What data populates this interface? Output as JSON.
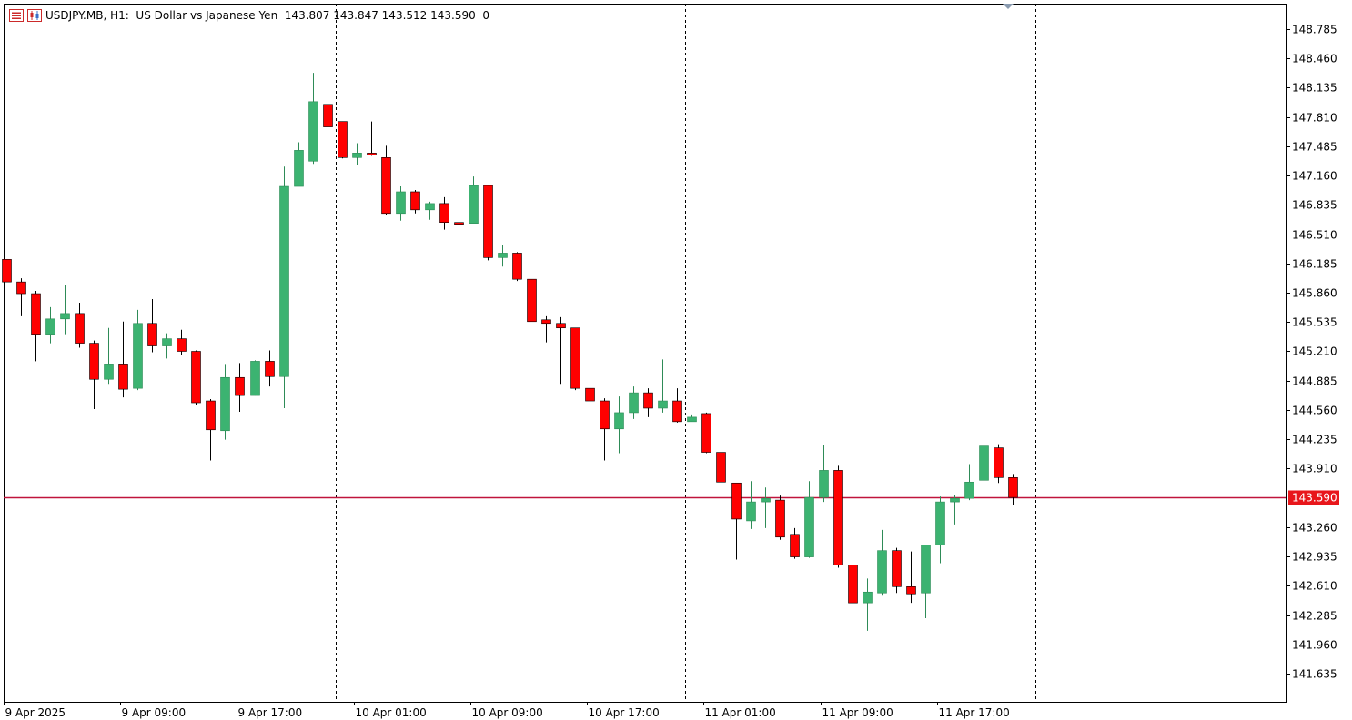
{
  "header": {
    "symbol_info": "USDJPY.MB, H1:  US Dollar vs Japanese Yen  143.807 143.847 143.512 143.590  0",
    "symbol_icon": "symbol-list-icon",
    "chart_icon": "candle-chart-icon"
  },
  "current_price": {
    "label": "143.590",
    "value": 143.59,
    "line_color": "#c0143c",
    "tag_color": "#e8161b"
  },
  "colors": {
    "bull": "#3cb371",
    "bear": "#ff0000",
    "grid_sep": "#000000"
  },
  "chart_data": {
    "type": "candlestick",
    "title": "",
    "y_ticks": [
      "148.785",
      "148.460",
      "148.135",
      "147.810",
      "147.485",
      "147.160",
      "146.835",
      "146.510",
      "146.185",
      "145.860",
      "145.535",
      "145.210",
      "144.885",
      "144.560",
      "144.235",
      "143.910",
      "143.260",
      "142.935",
      "142.610",
      "142.285",
      "141.960",
      "141.635"
    ],
    "ylim": [
      141.45,
      149.03
    ],
    "x_labels": [
      "9 Apr 2025",
      "9 Apr 09:00",
      "9 Apr 17:00",
      "10 Apr 01:00",
      "10 Apr 09:00",
      "10 Apr 17:00",
      "11 Apr 01:00",
      "11 Apr 09:00",
      "11 Apr 17:00"
    ],
    "day_separators": [
      "10 Apr 2025",
      "11 Apr 2025",
      "12 Apr 2025"
    ],
    "candles": [
      {
        "o": 146.23,
        "h": 146.23,
        "l": 145.98,
        "c": 145.98
      },
      {
        "o": 145.98,
        "h": 146.02,
        "l": 145.6,
        "c": 145.85
      },
      {
        "o": 145.85,
        "h": 145.88,
        "l": 145.1,
        "c": 145.4
      },
      {
        "o": 145.4,
        "h": 145.7,
        "l": 145.3,
        "c": 145.57
      },
      {
        "o": 145.57,
        "h": 145.95,
        "l": 145.4,
        "c": 145.63
      },
      {
        "o": 145.63,
        "h": 145.75,
        "l": 145.25,
        "c": 145.3
      },
      {
        "o": 145.3,
        "h": 145.33,
        "l": 144.57,
        "c": 144.9
      },
      {
        "o": 144.9,
        "h": 145.47,
        "l": 144.85,
        "c": 145.07
      },
      {
        "o": 145.07,
        "h": 145.54,
        "l": 144.7,
        "c": 144.79
      },
      {
        "o": 144.8,
        "h": 145.67,
        "l": 144.78,
        "c": 145.52
      },
      {
        "o": 145.52,
        "h": 145.79,
        "l": 145.2,
        "c": 145.27
      },
      {
        "o": 145.27,
        "h": 145.41,
        "l": 145.13,
        "c": 145.35
      },
      {
        "o": 145.35,
        "h": 145.45,
        "l": 145.17,
        "c": 145.21
      },
      {
        "o": 145.21,
        "h": 145.22,
        "l": 144.62,
        "c": 144.64
      },
      {
        "o": 144.66,
        "h": 144.68,
        "l": 144.0,
        "c": 144.34
      },
      {
        "o": 144.33,
        "h": 145.07,
        "l": 144.23,
        "c": 144.92
      },
      {
        "o": 144.92,
        "h": 145.08,
        "l": 144.54,
        "c": 144.72
      },
      {
        "o": 144.72,
        "h": 145.11,
        "l": 144.72,
        "c": 145.1
      },
      {
        "o": 145.1,
        "h": 145.22,
        "l": 144.82,
        "c": 144.93
      },
      {
        "o": 144.93,
        "h": 147.26,
        "l": 144.58,
        "c": 147.04
      },
      {
        "o": 147.04,
        "h": 147.53,
        "l": 147.04,
        "c": 147.44
      },
      {
        "o": 147.32,
        "h": 148.3,
        "l": 147.29,
        "c": 147.98
      },
      {
        "o": 147.95,
        "h": 148.05,
        "l": 147.68,
        "c": 147.7
      },
      {
        "o": 147.76,
        "h": 147.76,
        "l": 147.35,
        "c": 147.36
      },
      {
        "o": 147.36,
        "h": 147.52,
        "l": 147.28,
        "c": 147.41
      },
      {
        "o": 147.41,
        "h": 147.76,
        "l": 147.38,
        "c": 147.4
      },
      {
        "o": 147.36,
        "h": 147.49,
        "l": 146.72,
        "c": 146.74
      },
      {
        "o": 146.74,
        "h": 147.04,
        "l": 146.66,
        "c": 146.98
      },
      {
        "o": 146.98,
        "h": 147.0,
        "l": 146.74,
        "c": 146.78
      },
      {
        "o": 146.78,
        "h": 146.87,
        "l": 146.67,
        "c": 146.85
      },
      {
        "o": 146.85,
        "h": 146.92,
        "l": 146.56,
        "c": 146.64
      },
      {
        "o": 146.64,
        "h": 146.7,
        "l": 146.47,
        "c": 146.63
      },
      {
        "o": 146.63,
        "h": 147.15,
        "l": 146.63,
        "c": 147.05
      },
      {
        "o": 147.05,
        "h": 147.05,
        "l": 146.22,
        "c": 146.25
      },
      {
        "o": 146.25,
        "h": 146.39,
        "l": 146.15,
        "c": 146.3
      },
      {
        "o": 146.3,
        "h": 146.31,
        "l": 145.99,
        "c": 146.01
      },
      {
        "o": 146.01,
        "h": 146.01,
        "l": 145.54,
        "c": 145.54
      },
      {
        "o": 145.56,
        "h": 145.6,
        "l": 145.31,
        "c": 145.52
      },
      {
        "o": 145.52,
        "h": 145.59,
        "l": 144.85,
        "c": 145.47
      },
      {
        "o": 145.47,
        "h": 145.47,
        "l": 144.78,
        "c": 144.8
      },
      {
        "o": 144.8,
        "h": 144.93,
        "l": 144.56,
        "c": 144.66
      },
      {
        "o": 144.66,
        "h": 144.69,
        "l": 144.0,
        "c": 144.35
      },
      {
        "o": 144.35,
        "h": 144.71,
        "l": 144.08,
        "c": 144.53
      },
      {
        "o": 144.53,
        "h": 144.82,
        "l": 144.46,
        "c": 144.75
      },
      {
        "o": 144.75,
        "h": 144.8,
        "l": 144.48,
        "c": 144.58
      },
      {
        "o": 144.58,
        "h": 145.12,
        "l": 144.53,
        "c": 144.66
      },
      {
        "o": 144.66,
        "h": 144.8,
        "l": 144.42,
        "c": 144.43
      },
      {
        "o": 144.43,
        "h": 144.51,
        "l": 144.43,
        "c": 144.48
      },
      {
        "o": 144.52,
        "h": 144.53,
        "l": 144.08,
        "c": 144.09
      },
      {
        "o": 144.09,
        "h": 144.11,
        "l": 143.74,
        "c": 143.76
      },
      {
        "o": 143.75,
        "h": 143.75,
        "l": 142.9,
        "c": 143.35
      },
      {
        "o": 143.33,
        "h": 143.77,
        "l": 143.24,
        "c": 143.54
      },
      {
        "o": 143.54,
        "h": 143.7,
        "l": 143.25,
        "c": 143.58
      },
      {
        "o": 143.56,
        "h": 143.61,
        "l": 143.12,
        "c": 143.15
      },
      {
        "o": 143.18,
        "h": 143.25,
        "l": 142.91,
        "c": 142.93
      },
      {
        "o": 142.93,
        "h": 143.77,
        "l": 142.92,
        "c": 143.59
      },
      {
        "o": 143.59,
        "h": 144.17,
        "l": 143.54,
        "c": 143.89
      },
      {
        "o": 143.89,
        "h": 143.94,
        "l": 142.81,
        "c": 142.84
      },
      {
        "o": 142.84,
        "h": 143.06,
        "l": 142.11,
        "c": 142.42
      },
      {
        "o": 142.42,
        "h": 142.69,
        "l": 142.11,
        "c": 142.54
      },
      {
        "o": 142.53,
        "h": 143.23,
        "l": 142.5,
        "c": 143.0
      },
      {
        "o": 143.0,
        "h": 143.03,
        "l": 142.53,
        "c": 142.6
      },
      {
        "o": 142.6,
        "h": 142.99,
        "l": 142.42,
        "c": 142.52
      },
      {
        "o": 142.53,
        "h": 143.04,
        "l": 142.25,
        "c": 143.06
      },
      {
        "o": 143.06,
        "h": 143.6,
        "l": 142.86,
        "c": 143.54
      },
      {
        "o": 143.54,
        "h": 143.62,
        "l": 143.29,
        "c": 143.58
      },
      {
        "o": 143.58,
        "h": 143.96,
        "l": 143.56,
        "c": 143.76
      },
      {
        "o": 143.78,
        "h": 144.23,
        "l": 143.69,
        "c": 144.16
      },
      {
        "o": 144.14,
        "h": 144.18,
        "l": 143.75,
        "c": 143.81
      },
      {
        "o": 143.81,
        "h": 143.85,
        "l": 143.51,
        "c": 143.59
      }
    ]
  }
}
